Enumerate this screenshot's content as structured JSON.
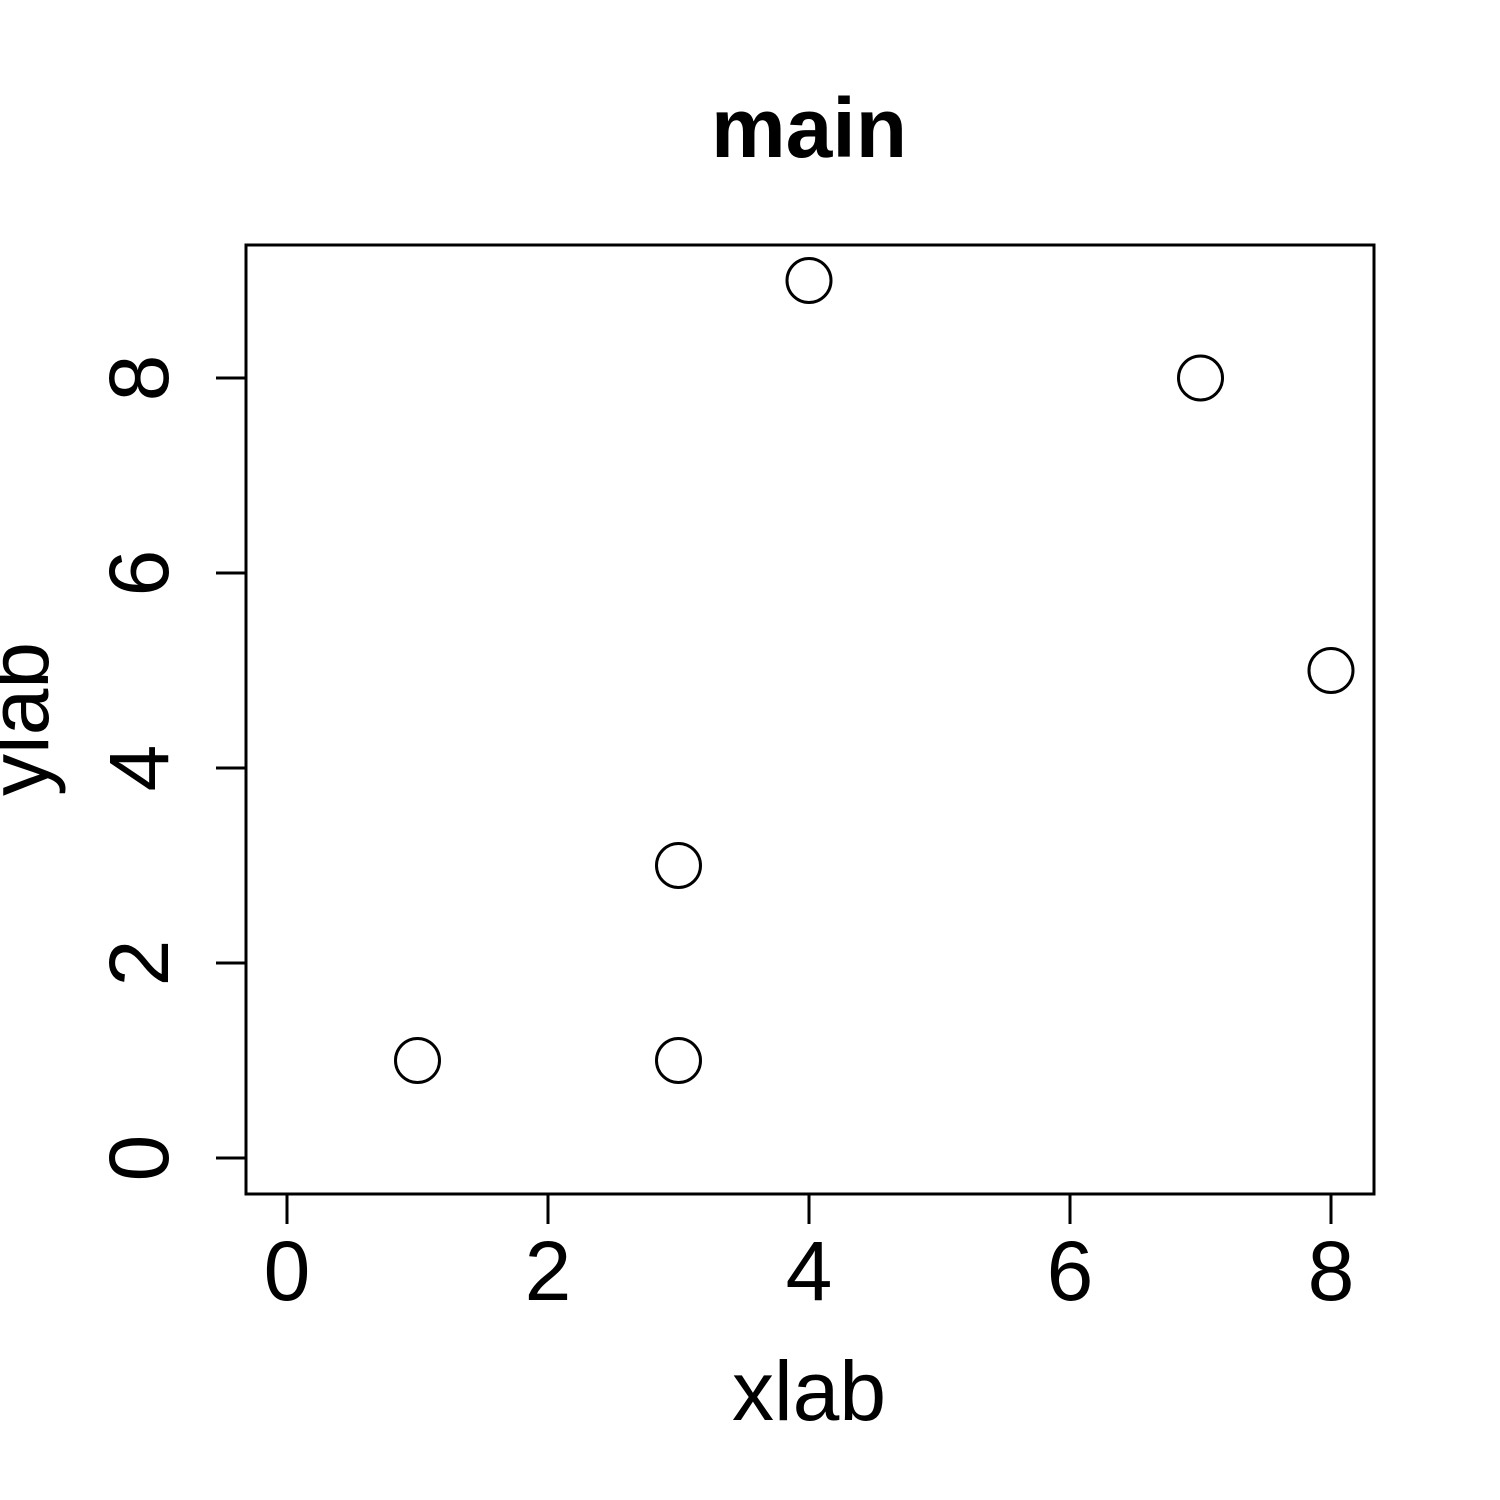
{
  "chart_data": {
    "type": "scatter",
    "title": "main",
    "xlabel": "xlab",
    "ylabel": "ylab",
    "xlim": [
      0,
      8
    ],
    "ylim": [
      0,
      9
    ],
    "xticks": [
      0,
      2,
      4,
      6,
      8
    ],
    "yticks": [
      0,
      2,
      4,
      6,
      8
    ],
    "x": [
      1,
      3,
      3,
      4,
      7,
      8
    ],
    "y": [
      1,
      1,
      3,
      9,
      8,
      5
    ],
    "marker": "open-circle",
    "grid": false,
    "colors": {
      "points": "#000000",
      "background": "#ffffff"
    }
  }
}
